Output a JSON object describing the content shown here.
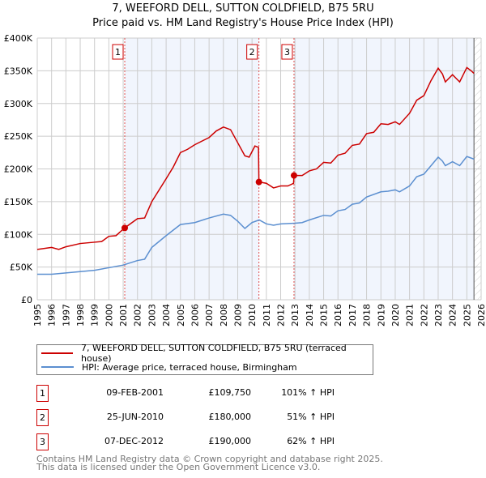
{
  "chart_data": {
    "type": "line",
    "title": "7, WEEFORD DELL, SUTTON COLDFIELD, B75 5RU",
    "subtitle": "Price paid vs. HM Land Registry's House Price Index (HPI)",
    "xlim": [
      1995,
      2026
    ],
    "ylim": [
      0,
      400000
    ],
    "x_ticks": [
      "1995",
      "1996",
      "1997",
      "1998",
      "1999",
      "2000",
      "2001",
      "2002",
      "2003",
      "2004",
      "2005",
      "2006",
      "2007",
      "2008",
      "2009",
      "2010",
      "2011",
      "2012",
      "2013",
      "2014",
      "2015",
      "2016",
      "2017",
      "2018",
      "2019",
      "2020",
      "2021",
      "2022",
      "2023",
      "2024",
      "2025",
      "2026"
    ],
    "y_ticks": [
      {
        "v": 0,
        "label": "£0"
      },
      {
        "v": 50000,
        "label": "£50K"
      },
      {
        "v": 100000,
        "label": "£100K"
      },
      {
        "v": 150000,
        "label": "£150K"
      },
      {
        "v": 200000,
        "label": "£200K"
      },
      {
        "v": 250000,
        "label": "£250K"
      },
      {
        "v": 300000,
        "label": "£300K"
      },
      {
        "v": 350000,
        "label": "£350K"
      },
      {
        "v": 400000,
        "label": "£400K"
      }
    ],
    "grid": true,
    "series": [
      {
        "name": "7, WEEFORD DELL, SUTTON COLDFIELD, B75 5RU (terraced house)",
        "color": "#cc0000",
        "x": [
          1995,
          1996,
          1996.5,
          1997,
          1998,
          1999,
          1999.5,
          2000,
          2000.5,
          2001.1,
          2002,
          2002.5,
          2003,
          2004,
          2004.5,
          2005,
          2005.5,
          2006,
          2007,
          2007.5,
          2008,
          2008.5,
          2009,
          2009.5,
          2009.8,
          2010.2,
          2010.45,
          2010.48,
          2011,
          2011.5,
          2012,
          2012.5,
          2012.9,
          2012.93,
          2013.5,
          2014,
          2014.5,
          2015,
          2015.5,
          2016,
          2016.5,
          2017,
          2017.5,
          2018,
          2018.5,
          2019,
          2019.5,
          2020,
          2020.3,
          2021,
          2021.5,
          2022,
          2022.5,
          2023,
          2023.3,
          2023.5,
          2024,
          2024.5,
          2025,
          2025.3,
          2025.5
        ],
        "y": [
          77,
          80,
          77,
          81,
          86,
          88,
          89,
          97,
          98,
          109.75,
          124,
          125,
          150,
          185,
          203,
          225,
          230,
          237,
          248,
          258,
          264,
          260,
          240,
          220,
          218,
          235,
          233,
          180,
          178,
          171,
          174,
          174,
          178,
          190,
          190,
          197,
          200,
          210,
          209,
          221,
          224,
          236,
          238,
          254,
          256,
          269,
          268,
          272,
          268,
          285,
          305,
          312,
          335,
          354,
          345,
          333,
          344,
          333,
          355,
          350,
          346
        ]
      },
      {
        "name": "HPI: Average price, terraced house, Birmingham",
        "color": "#5b8fd0",
        "x": [
          1995,
          1996,
          1997,
          1998,
          1999,
          2000,
          2001,
          2002,
          2002.5,
          2003,
          2004,
          2005,
          2006,
          2007,
          2008,
          2008.5,
          2009,
          2009.5,
          2010,
          2010.5,
          2011,
          2011.5,
          2012,
          2013,
          2013.5,
          2014,
          2015,
          2015.5,
          2016,
          2016.5,
          2017,
          2017.5,
          2018,
          2019,
          2019.5,
          2020,
          2020.3,
          2021,
          2021.5,
          2022,
          2022.5,
          2023,
          2023.3,
          2023.5,
          2024,
          2024.5,
          2025,
          2025.5
        ],
        "y": [
          39,
          39,
          41,
          43,
          45,
          49,
          53,
          60,
          62,
          80,
          98,
          115,
          118,
          125,
          131,
          129,
          120,
          109,
          118,
          122,
          116,
          114,
          116,
          117,
          118,
          122,
          129,
          128,
          136,
          138,
          146,
          148,
          157,
          165,
          166,
          168,
          165,
          174,
          188,
          192,
          205,
          218,
          212,
          205,
          211,
          205,
          219,
          215
        ]
      }
    ],
    "y_unit": "thousands GBP",
    "sales": [
      {
        "n": "1",
        "x": 2001.11,
        "y": 109.75,
        "date": "09-FEB-2001",
        "price": "£109,750",
        "hpi": "101% ↑ HPI"
      },
      {
        "n": "2",
        "x": 2010.48,
        "y": 180,
        "date": "25-JUN-2010",
        "price": "£180,000",
        "hpi": "51% ↑ HPI"
      },
      {
        "n": "3",
        "x": 2012.93,
        "y": 190,
        "date": "07-DEC-2012",
        "price": "£190,000",
        "hpi": "62% ↑ HPI"
      }
    ],
    "shaded": [
      [
        2001.11,
        2010.48
      ],
      [
        2012.93,
        2025.5
      ]
    ],
    "forecast_start": 2025.5
  },
  "legend": [
    "7, WEEFORD DELL, SUTTON COLDFIELD, B75 5RU (terraced house)",
    "HPI: Average price, terraced house, Birmingham"
  ],
  "footer": [
    "Contains HM Land Registry data © Crown copyright and database right 2025.",
    "This data is licensed under the Open Government Licence v3.0."
  ]
}
